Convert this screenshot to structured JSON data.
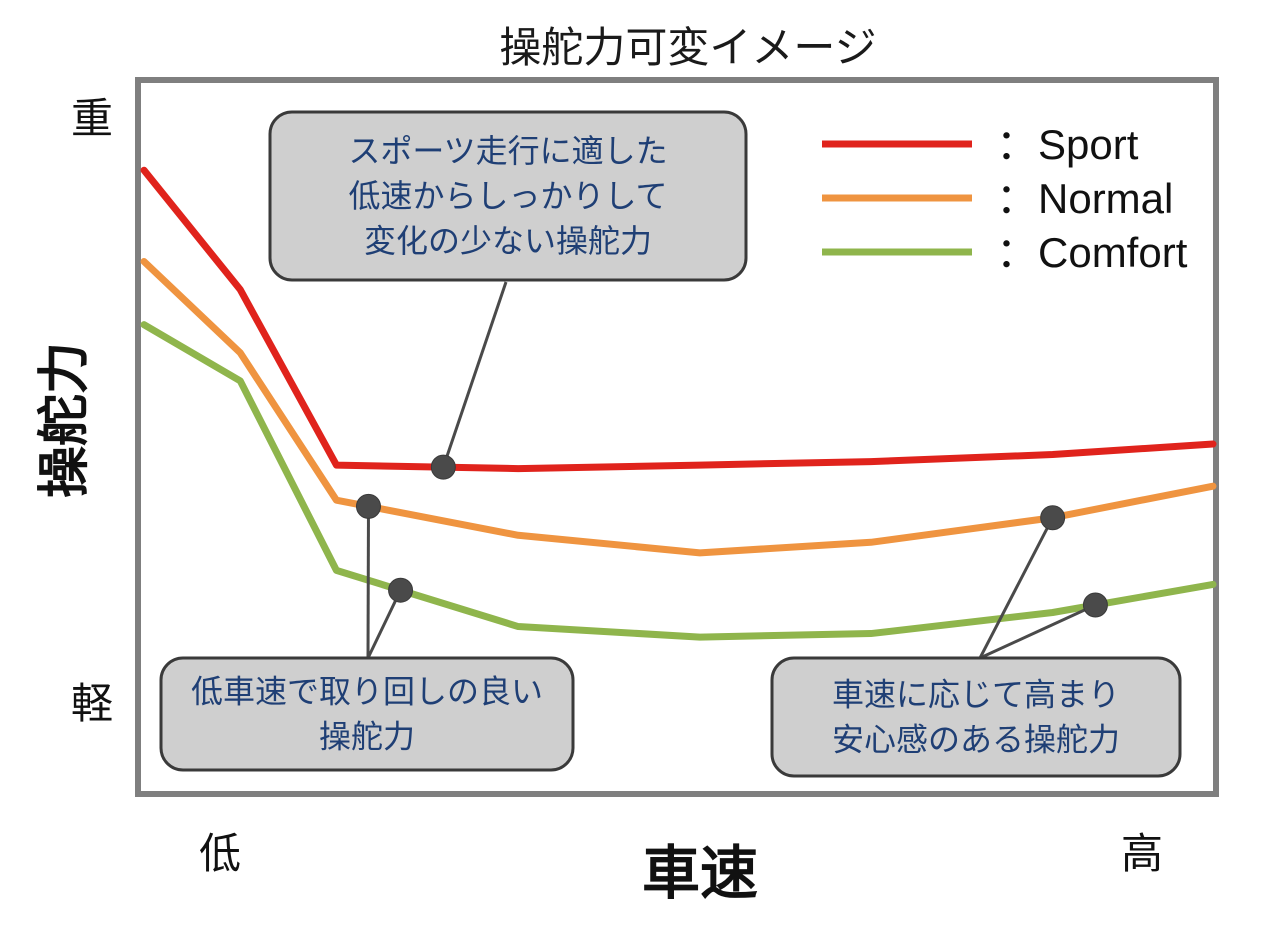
{
  "chart_data": {
    "type": "line",
    "title": "操舵力可変イメージ",
    "xlabel": "車速",
    "ylabel": "操舵力",
    "x_tick_low": "低",
    "x_tick_high": "高",
    "y_tick_high": "重",
    "y_tick_low": "軽",
    "xlim": [
      0,
      100
    ],
    "ylim": [
      0,
      100
    ],
    "x": [
      0,
      9,
      18,
      35,
      52,
      68,
      85,
      100
    ],
    "series": [
      {
        "name": "：Sport",
        "color": "#e0231c",
        "values": [
          88,
          71,
          46,
          45.5,
          46,
          46.5,
          47.5,
          49
        ]
      },
      {
        "name": "：Normal",
        "color": "#ef9440",
        "values": [
          75,
          62,
          41,
          36,
          33.5,
          35,
          38.5,
          43
        ]
      },
      {
        "name": "：Comfort",
        "color": "#8fb54c",
        "values": [
          66,
          58,
          31,
          23,
          21.5,
          22,
          25,
          29
        ]
      }
    ],
    "legend_position": "top-right",
    "grid": false,
    "annotations": [
      {
        "lines": [
          "スポーツ走行に適した",
          "低速からしっかりして",
          "変化の少ない操舵力"
        ],
        "points": [
          {
            "series": 0,
            "x": 28
          }
        ]
      },
      {
        "lines": [
          "低車速で取り回しの良い",
          "操舵力"
        ],
        "points": [
          {
            "series": 1,
            "x": 21
          },
          {
            "series": 2,
            "x": 24
          }
        ]
      },
      {
        "lines": [
          "車速に応じて高まり",
          "安心感のある操舵力"
        ],
        "points": [
          {
            "series": 1,
            "x": 85
          },
          {
            "series": 2,
            "x": 89
          }
        ]
      }
    ]
  }
}
